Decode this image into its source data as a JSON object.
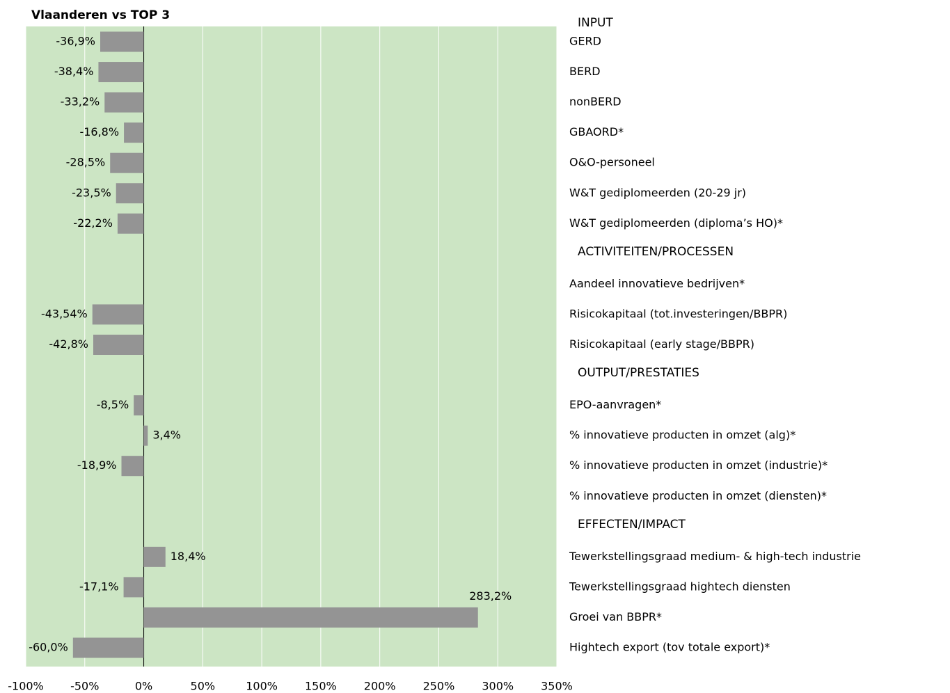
{
  "chart_data": {
    "type": "bar",
    "orientation": "horizontal",
    "title": "Vlaanderen vs TOP 3",
    "color": "#949494",
    "background": "#cce5c4",
    "header_color": "#e8332a",
    "title_color": "#f0921e",
    "grid": true,
    "xlim": [
      -100,
      350
    ],
    "xticks": [
      {
        "value": -100,
        "label": "-100%"
      },
      {
        "value": -50,
        "label": "-50%"
      },
      {
        "value": 0,
        "label": "0%"
      },
      {
        "value": 50,
        "label": "50%"
      },
      {
        "value": 100,
        "label": "100%"
      },
      {
        "value": 150,
        "label": "150%"
      },
      {
        "value": 200,
        "label": "200%"
      },
      {
        "value": 250,
        "label": "250%"
      },
      {
        "value": 300,
        "label": "300%"
      },
      {
        "value": 350,
        "label": "350%"
      }
    ],
    "sections": [
      {
        "name": "INPUT",
        "categories": [
          "GERD",
          "BERD",
          "nonBERD",
          "GBAORD*",
          "O&O-personeel",
          "W&T gediplomeerden (20-29 jr)",
          "W&T gediplomeerden (diploma’s HO)*"
        ],
        "values": [
          -36.9,
          -38.4,
          -33.2,
          -16.8,
          -28.5,
          -23.5,
          -22.2
        ],
        "value_labels": [
          "-36,9%",
          "-38,4%",
          "-33,2%",
          "-16,8%",
          "-28,5%",
          "-23,5%",
          "-22,2%"
        ]
      },
      {
        "name": "ACTIVITEITEN/PROCESSEN",
        "categories": [
          "Aandeel innovatieve bedrijven*",
          "Risicokapitaal (tot.investeringen/BBPR)",
          "Risicokapitaal (early stage/BBPR)"
        ],
        "values": [
          null,
          -43.54,
          -42.8
        ],
        "value_labels": [
          null,
          "-43,54%",
          "-42,8%"
        ]
      },
      {
        "name": "OUTPUT/PRESTATIES",
        "categories": [
          "EPO-aanvragen*",
          "% innovatieve producten in omzet (alg)*",
          "% innovatieve producten in omzet (industrie)*",
          "% innovatieve producten in omzet (diensten)*"
        ],
        "values": [
          -8.5,
          3.4,
          -18.9,
          null
        ],
        "value_labels": [
          "-8,5%",
          "3,4%",
          "-18,9%",
          null
        ]
      },
      {
        "name": "EFFECTEN/IMPACT",
        "categories": [
          "Tewerkstellingsgraad medium- & high-tech industrie",
          "Tewerkstellingsgraad hightech diensten",
          "Groei van BBPR*",
          "Hightech export (tov totale export)*"
        ],
        "values": [
          18.4,
          -17.1,
          283.2,
          -60.0
        ],
        "value_labels": [
          "18,4%",
          "-17,1%",
          "283,2%",
          "-60,0%"
        ]
      }
    ]
  }
}
